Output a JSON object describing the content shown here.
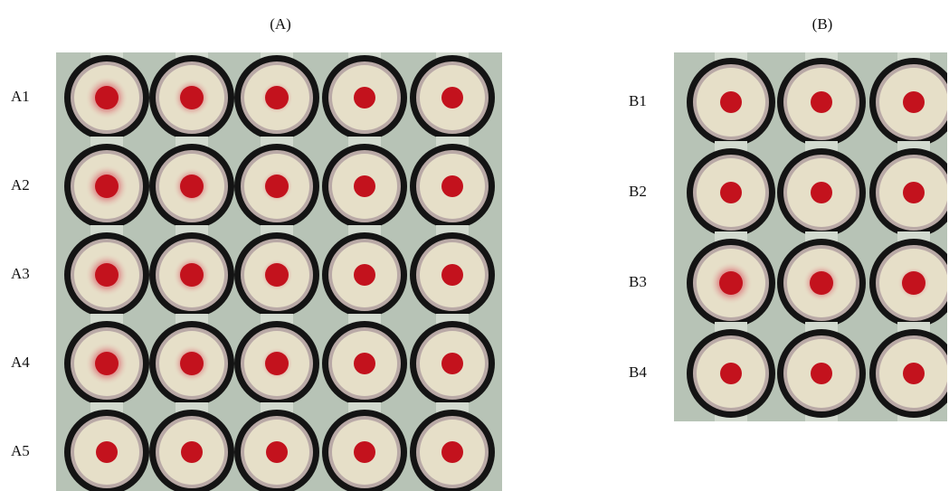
{
  "panels": [
    {
      "title": "(A)",
      "rows": [
        "A1",
        "A2",
        "A3",
        "A4",
        "A5"
      ]
    },
    {
      "title": "(B)",
      "rows": [
        "B1",
        "B2",
        "B3",
        "B4"
      ]
    }
  ]
}
